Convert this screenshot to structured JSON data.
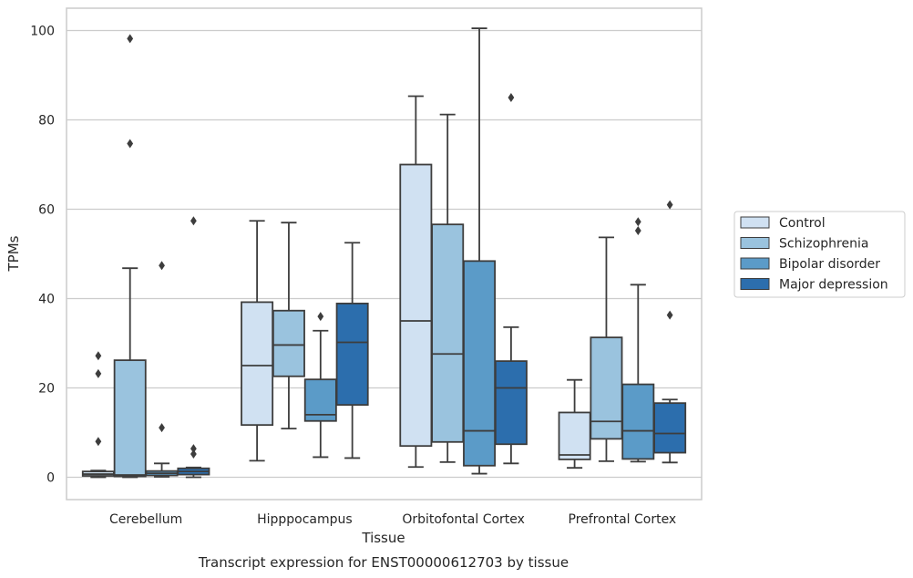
{
  "caption": "Transcript expression for ENST00000612703 by tissue",
  "chart_data": {
    "type": "box",
    "xlabel": "Tissue",
    "ylabel": "TPMs",
    "ylim": [
      -5,
      105
    ],
    "yticks": [
      0,
      20,
      40,
      60,
      80,
      100
    ],
    "grid": true,
    "legend_position": "right",
    "categories": [
      "Cerebellum",
      "Hipppocampus",
      "Orbitofontal Cortex",
      "Prefrontal Cortex"
    ],
    "series": [
      {
        "name": "Control",
        "color": "#d0e1f2",
        "boxes": [
          {
            "whislo": 0.0,
            "q1": 0.3,
            "med": 0.7,
            "q3": 1.3,
            "whishi": 1.5,
            "fliers": [
              8.0,
              23.2,
              27.2
            ]
          },
          {
            "whislo": 3.7,
            "q1": 11.7,
            "med": 25.0,
            "q3": 39.2,
            "whishi": 57.4,
            "fliers": []
          },
          {
            "whislo": 2.3,
            "q1": 7.0,
            "med": 35.0,
            "q3": 70.0,
            "whishi": 85.3,
            "fliers": []
          },
          {
            "whislo": 2.1,
            "q1": 4.0,
            "med": 5.0,
            "q3": 14.5,
            "whishi": 21.8,
            "fliers": []
          }
        ]
      },
      {
        "name": "Schizophrenia",
        "color": "#9ac3de",
        "boxes": [
          {
            "whislo": 0.0,
            "q1": 0.2,
            "med": 0.5,
            "q3": 26.2,
            "whishi": 46.8,
            "fliers": [
              74.7,
              98.2
            ]
          },
          {
            "whislo": 10.9,
            "q1": 22.6,
            "med": 29.6,
            "q3": 37.3,
            "whishi": 57.0,
            "fliers": []
          },
          {
            "whislo": 3.4,
            "q1": 7.9,
            "med": 27.6,
            "q3": 56.6,
            "whishi": 81.2,
            "fliers": []
          },
          {
            "whislo": 3.6,
            "q1": 8.6,
            "med": 12.5,
            "q3": 31.3,
            "whishi": 53.7,
            "fliers": []
          }
        ]
      },
      {
        "name": "Bipolar disorder",
        "color": "#5b9bc8",
        "boxes": [
          {
            "whislo": 0.1,
            "q1": 0.4,
            "med": 0.9,
            "q3": 1.4,
            "whishi": 3.1,
            "fliers": [
              11.1,
              47.4
            ]
          },
          {
            "whislo": 4.5,
            "q1": 12.6,
            "med": 14.0,
            "q3": 21.9,
            "whishi": 32.8,
            "fliers": [
              36.0
            ]
          },
          {
            "whislo": 0.8,
            "q1": 2.6,
            "med": 10.4,
            "q3": 48.4,
            "whishi": 100.5,
            "fliers": []
          },
          {
            "whislo": 3.5,
            "q1": 4.1,
            "med": 10.4,
            "q3": 20.8,
            "whishi": 43.1,
            "fliers": [
              55.2,
              57.2
            ]
          }
        ]
      },
      {
        "name": "Major depression",
        "color": "#2c6ead",
        "boxes": [
          {
            "whislo": 0.0,
            "q1": 0.6,
            "med": 1.3,
            "q3": 2.0,
            "whishi": 2.2,
            "fliers": [
              5.2,
              6.4,
              57.4
            ]
          },
          {
            "whislo": 4.3,
            "q1": 16.2,
            "med": 30.2,
            "q3": 38.9,
            "whishi": 52.5,
            "fliers": []
          },
          {
            "whislo": 3.1,
            "q1": 7.4,
            "med": 20.0,
            "q3": 26.0,
            "whishi": 33.6,
            "fliers": [
              85.0
            ]
          },
          {
            "whislo": 3.3,
            "q1": 5.5,
            "med": 9.8,
            "q3": 16.6,
            "whishi": 17.4,
            "fliers": [
              36.3,
              61.0
            ]
          }
        ]
      }
    ]
  }
}
